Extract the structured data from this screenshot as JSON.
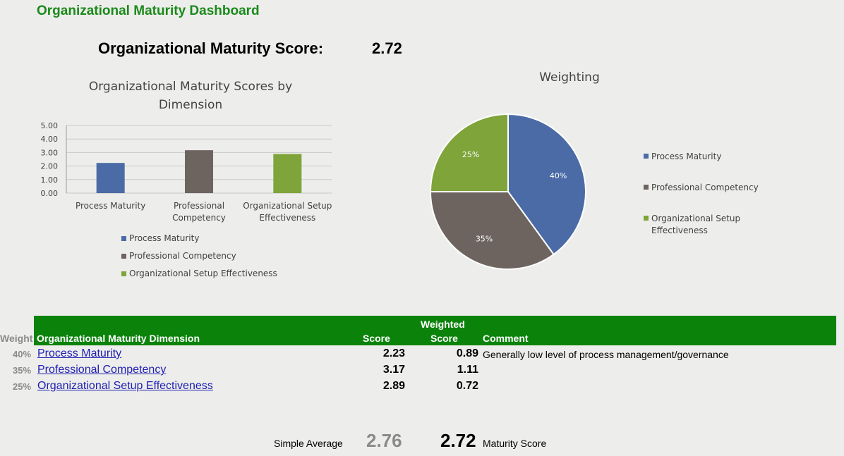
{
  "dashboard_title": "Organizational Maturity Dashboard",
  "score": {
    "label": "Organizational Maturity Score:",
    "value": "2.72"
  },
  "bar_chart": {
    "title": "Organizational Maturity Scores by Dimension",
    "legend": [
      "Process Maturity",
      "Professional Competency",
      "Organizational Setup Effectiveness"
    ]
  },
  "pie_chart": {
    "title": "Weighting",
    "legend": [
      "Process Maturity",
      "Professional Competency",
      "Organizational Setup Effectiveness"
    ]
  },
  "colors": {
    "process": "#4a6ba6",
    "professional": "#6d6460",
    "organizational": "#7ea43a",
    "header_green": "#0b830b"
  },
  "chart_data": [
    {
      "type": "bar",
      "title": "Organizational Maturity Scores by Dimension",
      "categories": [
        "Process Maturity",
        "Professional Competency",
        "Organizational Setup Effectiveness"
      ],
      "values": [
        2.23,
        3.17,
        2.89
      ],
      "ylim": [
        0,
        5
      ],
      "yticks": [
        "0.00",
        "1.00",
        "2.00",
        "3.00",
        "4.00",
        "5.00"
      ],
      "grid": true,
      "legend_position": "bottom"
    },
    {
      "type": "pie",
      "title": "Weighting",
      "labels": [
        "Process Maturity",
        "Professional Competency",
        "Organizational Setup Effectiveness"
      ],
      "values": [
        40,
        35,
        25
      ],
      "data_labels": [
        "40%",
        "35%",
        "25%"
      ],
      "legend_position": "right"
    }
  ],
  "table": {
    "headers": {
      "weight": "Weight",
      "dimension": "Organizational Maturity Dimension",
      "score": "Score",
      "weighted_line1": "Weighted",
      "weighted_line2": "Score",
      "comment": "Comment"
    },
    "rows": [
      {
        "weight": "40%",
        "name": "Process Maturity",
        "score": "2.23",
        "weighted": "0.89",
        "comment": "Generally low level of process management/governance"
      },
      {
        "weight": "35%",
        "name": "Professional Competency",
        "score": "3.17",
        "weighted": "1.11",
        "comment": ""
      },
      {
        "weight": "25%",
        "name": "Organizational Setup Effectiveness",
        "score": "2.89",
        "weighted": "0.72",
        "comment": ""
      }
    ]
  },
  "footer": {
    "simple_average_label": "Simple Average",
    "simple_average_value": "2.76",
    "maturity_value": "2.72",
    "maturity_label": "Maturity Score"
  }
}
